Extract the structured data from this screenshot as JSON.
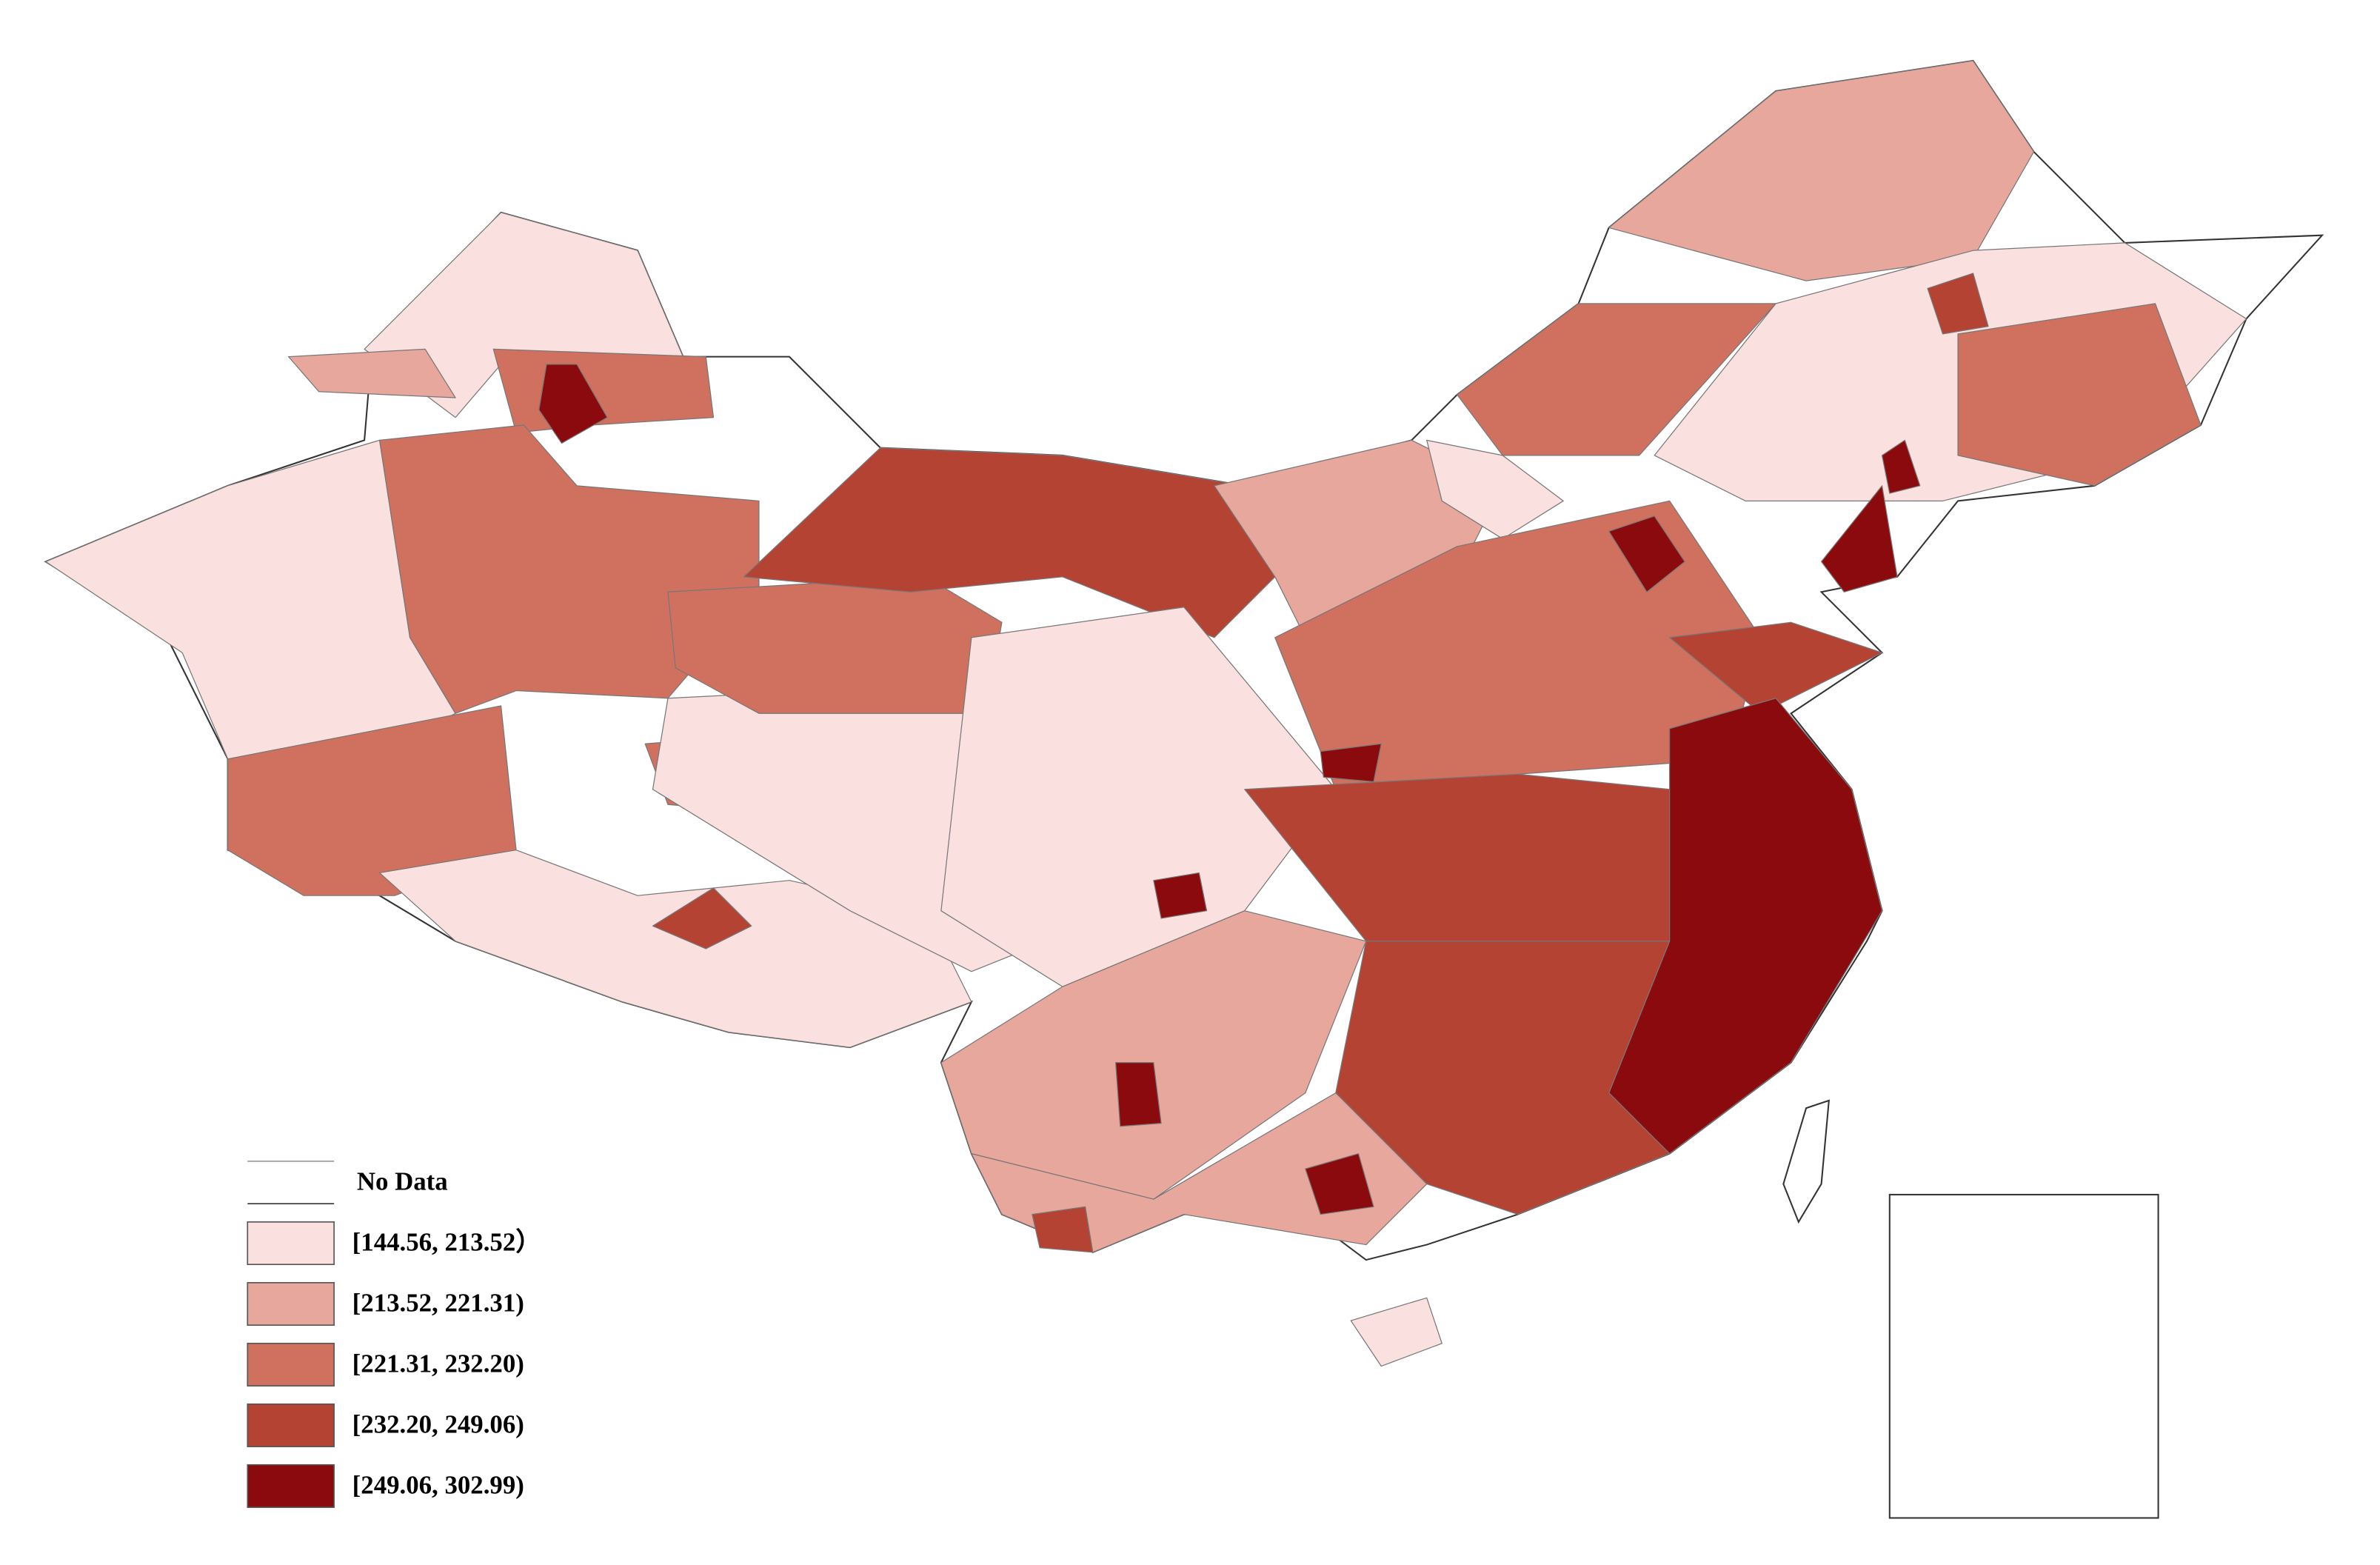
{
  "legend": {
    "no_data": "No Data",
    "classes": [
      {
        "label": "[144.56, 213.52）",
        "color": "#fbe0e0"
      },
      {
        "label": "[213.52, 221.31)",
        "color": "#e8a79c"
      },
      {
        "label": "[221.31, 232.20)",
        "color": "#d0705f"
      },
      {
        "label": "[232.20, 249.06)",
        "color": "#b54334"
      },
      {
        "label": "[249.06, 302.99)",
        "color": "#8b0a0e"
      }
    ]
  }
}
